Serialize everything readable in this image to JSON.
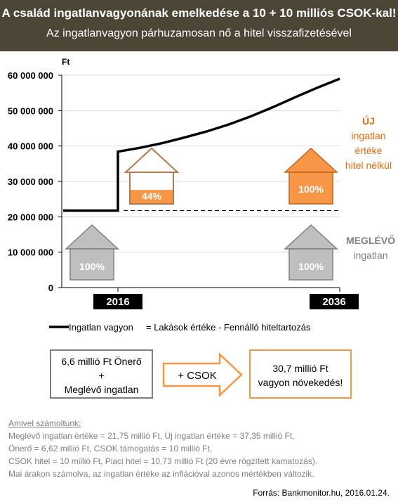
{
  "header": {
    "title": "A család ingatlanvagyonának emelkedése a 10 + 10 milliós CSOK-kal!",
    "subtitle": "Az ingatlanvagyon párhuzamosan nő a hitel visszafizetésével"
  },
  "chart_data": {
    "type": "line",
    "ylabel": "Ft",
    "ylim": [
      0,
      60000000
    ],
    "y_ticks": [
      0,
      10000000,
      20000000,
      30000000,
      40000000,
      50000000,
      60000000
    ],
    "y_tick_labels": [
      "0",
      "10 000 000",
      "20 000 000",
      "30 000 000",
      "40 000 000",
      "50 000 000",
      "60 000 000"
    ],
    "x_tick_labels": [
      "2016",
      "2036"
    ],
    "series": [
      {
        "name": "Ingatlan vagyon",
        "points": [
          {
            "x": 2012,
            "y": 21750000
          },
          {
            "x": 2016,
            "y": 21750000
          },
          {
            "x": 2016,
            "y": 38400000
          },
          {
            "x": 2018,
            "y": 39500000
          },
          {
            "x": 2020,
            "y": 40800000
          },
          {
            "x": 2022,
            "y": 42400000
          },
          {
            "x": 2024,
            "y": 44100000
          },
          {
            "x": 2026,
            "y": 46100000
          },
          {
            "x": 2028,
            "y": 48400000
          },
          {
            "x": 2030,
            "y": 51000000
          },
          {
            "x": 2032,
            "y": 53800000
          },
          {
            "x": 2034,
            "y": 56500000
          },
          {
            "x": 2036,
            "y": 59000000
          }
        ]
      }
    ],
    "reference_line": {
      "y": 21750000,
      "style": "dashed"
    },
    "houses": [
      {
        "label": "100%",
        "pos": "left",
        "kind": "existing"
      },
      {
        "label": "44%",
        "pos": "left",
        "kind": "new",
        "fill_fraction": 0.44
      },
      {
        "label": "100%",
        "pos": "right",
        "kind": "existing"
      },
      {
        "label": "100%",
        "pos": "right",
        "kind": "new",
        "fill_fraction": 1.0
      }
    ],
    "legend": {
      "label": "Ingatlan vagyon",
      "equation": "= Lakások értéke - Fennálló hiteltartozás"
    }
  },
  "side_labels": {
    "new_title": "ÚJ",
    "new_lines": [
      "ingatlan",
      "értéke",
      "hitel nélkül"
    ],
    "existing_title": "MEGLÉVŐ",
    "existing_line": "ingatlan"
  },
  "flow": {
    "box1_lines": [
      "6,6 millió Ft Önerő",
      "+",
      "Meglévő ingatlan"
    ],
    "arrow_label": "+ CSOK",
    "box2_lines": [
      "30,7 millió Ft",
      "vagyon növekedés!"
    ]
  },
  "notes": {
    "heading": "Amivel számoltunk:",
    "lines": [
      "Meglévő ingatlan értéke = 21,75  millió Ft, Új ingatlan értéke = 37,35  millió Ft,",
      "Önerő = 6,62  millió Ft, CSOK támogatás = 10 millió Ft,",
      "CSOK hitel = 10  millió Ft, Piaci hitel = 10,73  millió Ft (20 évre rögzített kamatozás).",
      "Mai árakon számolva, az ingatlan értéke az inflációval azonos mértékben változik."
    ]
  },
  "source": "Forrás: Bankmonitor.hu, 2016.01.24.",
  "colors": {
    "header_bg": "#4b4536",
    "orange": "#f79646",
    "orange_text": "#e46c0a",
    "house_gray": "#bfbfbf",
    "house_gray_border": "#7f7f7f"
  }
}
